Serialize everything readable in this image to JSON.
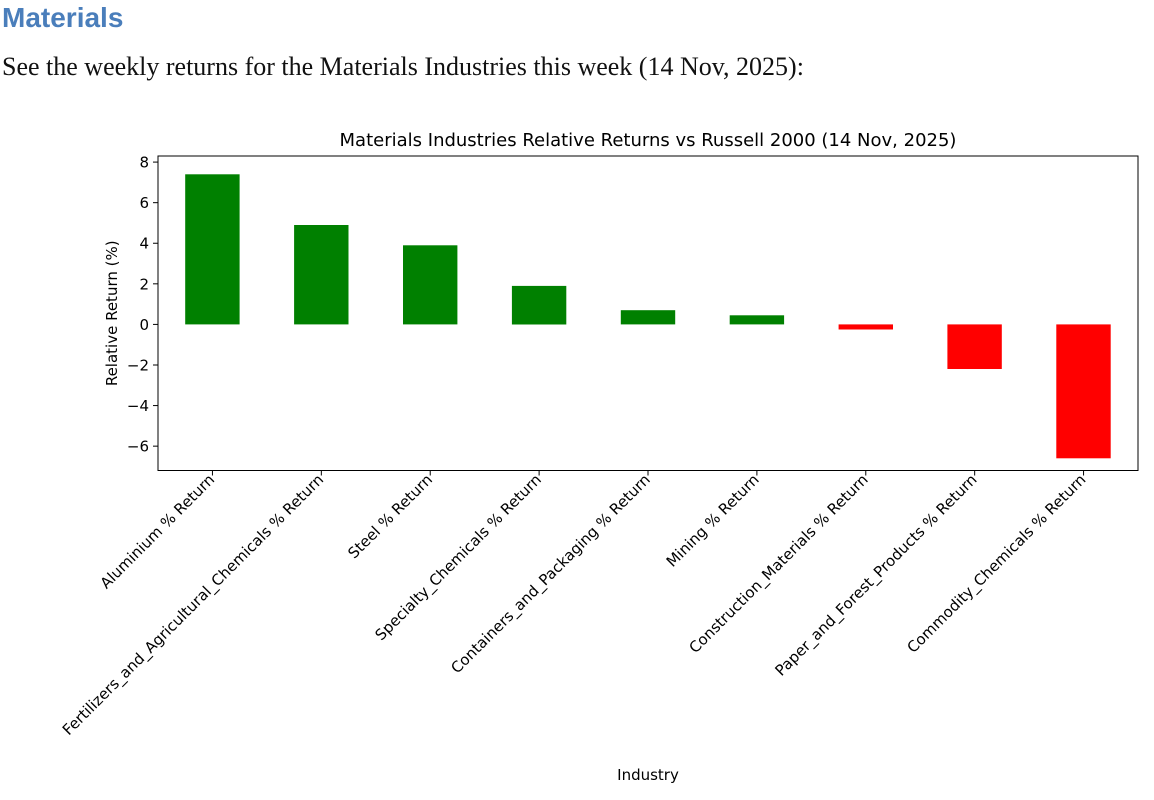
{
  "page": {
    "heading": "Materials",
    "heading_color": "#4A7EBB",
    "intro": "See the weekly returns for the Materials Industries this week (14 Nov, 2025):"
  },
  "chart_data": {
    "type": "bar",
    "title": "Materials Industries Relative Returns vs Russell 2000 (14 Nov, 2025)",
    "xlabel": "Industry",
    "ylabel": "Relative Return (%)",
    "categories": [
      "Aluminium % Return",
      "Fertilizers_and_Agricultural_Chemicals % Return",
      "Steel % Return",
      "Specialty_Chemicals % Return",
      "Containers_and_Packaging % Return",
      "Mining % Return",
      "Construction_Materials % Return",
      "Paper_and_Forest_Products % Return",
      "Commodity_Chemicals % Return"
    ],
    "values": [
      7.4,
      4.9,
      3.9,
      1.9,
      0.7,
      0.45,
      -0.25,
      -2.2,
      -6.6
    ],
    "positive_color": "#008000",
    "negative_color": "#ff0000",
    "text_color": "#000000",
    "spine_color": "#000000",
    "ylim": [
      -7.2,
      8.3
    ],
    "yticks": [
      8,
      6,
      4,
      2,
      0,
      -2,
      -4,
      -6
    ],
    "bar_width_fraction": 0.5,
    "x_tick_rotation_deg": 45,
    "grid": false,
    "legend": "none"
  }
}
